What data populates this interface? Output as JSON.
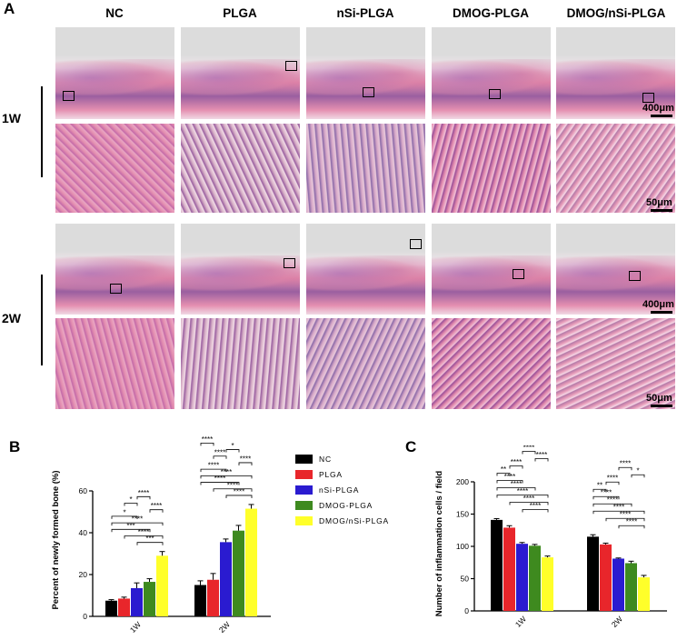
{
  "panel_labels": {
    "a": "A",
    "b": "B",
    "c": "C"
  },
  "histology": {
    "columns": [
      "NC",
      "PLGA",
      "nSi-PLGA",
      "DMOG-PLGA",
      "DMOG/nSi-PLGA"
    ],
    "rows": [
      "1W",
      "2W"
    ],
    "scale_low": "400μm",
    "scale_high": "50μm",
    "colors": {
      "stain_pink": "#e48fb0",
      "stain_purple": "#9a5fa0",
      "background_gray": "#dcdcdc",
      "pale": "#f3e6ee"
    }
  },
  "legend": {
    "entries": [
      "NC",
      "PLGA",
      "nSi-PLGA",
      "DMOG-PLGA",
      "DMOG/nSi-PLGA"
    ],
    "colors": [
      "#000000",
      "#e8262b",
      "#2a1bd0",
      "#3e8a1f",
      "#ffff2a"
    ]
  },
  "chart_data": [
    {
      "type": "bar",
      "ylabel": "Percent of newly formed bone (%)",
      "xlabel": "",
      "categories": [
        "1W",
        "2W"
      ],
      "ylim": [
        0,
        60
      ],
      "yticks": [
        0,
        20,
        40,
        60
      ],
      "series": [
        {
          "name": "NC",
          "values": [
            7.5,
            15
          ],
          "errors": [
            0.5,
            2
          ]
        },
        {
          "name": "PLGA",
          "values": [
            8.5,
            17.5
          ],
          "errors": [
            0.7,
            3
          ]
        },
        {
          "name": "nSi-PLGA",
          "values": [
            13.5,
            35.5
          ],
          "errors": [
            2.5,
            1.5
          ]
        },
        {
          "name": "DMOG-PLGA",
          "values": [
            16.5,
            41
          ],
          "errors": [
            1.5,
            2.5
          ]
        },
        {
          "name": "DMOG/nSi-PLGA",
          "values": [
            29,
            51.5
          ],
          "errors": [
            2,
            2
          ]
        }
      ],
      "significance": {
        "1W": [
          "***",
          "****",
          "***",
          "****",
          "*",
          "****",
          "*",
          "****"
        ],
        "2W": [
          "****",
          "****",
          "****",
          "****",
          "****",
          "****",
          "****",
          "*",
          "****"
        ]
      }
    },
    {
      "type": "bar",
      "ylabel": "Number of inflammation cells / field",
      "xlabel": "",
      "categories": [
        "1W",
        "2W"
      ],
      "ylim": [
        0,
        200
      ],
      "yticks": [
        0,
        50,
        100,
        150,
        200
      ],
      "series": [
        {
          "name": "NC",
          "values": [
            141,
            115
          ],
          "errors": [
            2,
            3
          ]
        },
        {
          "name": "PLGA",
          "values": [
            129,
            103
          ],
          "errors": [
            3,
            2
          ]
        },
        {
          "name": "nSi-PLGA",
          "values": [
            104,
            81
          ],
          "errors": [
            2,
            1
          ]
        },
        {
          "name": "DMOG-PLGA",
          "values": [
            101,
            74
          ],
          "errors": [
            2,
            3
          ]
        },
        {
          "name": "DMOG/nSi-PLGA",
          "values": [
            83,
            52
          ],
          "errors": [
            2,
            3
          ]
        }
      ],
      "significance": {
        "1W": [
          "****",
          "****",
          "****",
          "****",
          "****",
          "**",
          "****",
          "****",
          "****"
        ],
        "2W": [
          "****",
          "****",
          "****",
          "****",
          "****",
          "**",
          "****",
          "*",
          "****"
        ]
      }
    }
  ]
}
